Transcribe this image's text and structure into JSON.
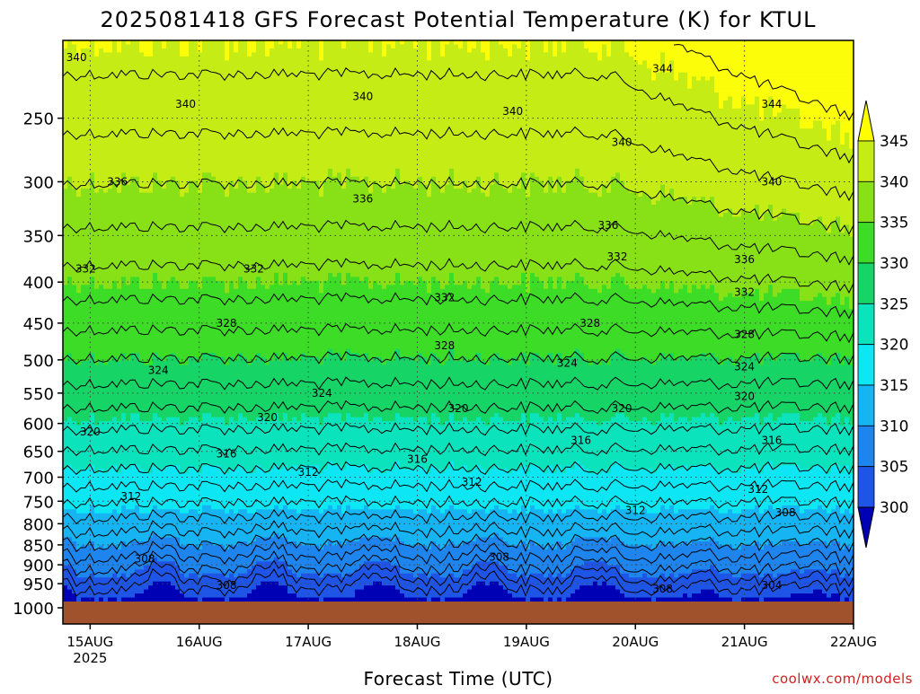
{
  "chart_data": {
    "type": "heatmap",
    "title": "2025081418 GFS Forecast Potential Temperature (K) for KTUL",
    "xlabel": "Forecast Time (UTC)",
    "ylabel": "",
    "watermark": "coolwx.com/models",
    "x_ticks": [
      "15AUG",
      "16AUG",
      "17AUG",
      "18AUG",
      "19AUG",
      "20AUG",
      "21AUG",
      "22AUG"
    ],
    "x_year_label": "2025",
    "x_range": [
      "2025-08-14T18:00",
      "2025-08-22T00:00"
    ],
    "y_ticks": [
      250,
      300,
      350,
      400,
      450,
      500,
      550,
      600,
      650,
      700,
      750,
      800,
      850,
      900,
      950,
      1000
    ],
    "y_range": [
      200,
      1000
    ],
    "y_scale": "log",
    "y_reversed": true,
    "grid": true,
    "colorbar": {
      "levels": [
        300,
        305,
        310,
        315,
        320,
        325,
        330,
        335,
        340,
        345
      ],
      "colors": [
        "#0a0cd6",
        "#1f55e6",
        "#1e84ee",
        "#16b4f2",
        "#0de7f4",
        "#0be3bc",
        "#17d467",
        "#3ddc27",
        "#88e016",
        "#c6ec16",
        "#fbfd09"
      ],
      "below_color": "#0000b4",
      "above_color": "#ffff00",
      "placement": "right"
    },
    "ground_color": "#a0522d",
    "contour_labels": [
      {
        "text": "340",
        "time": "2025-08-14T21:00",
        "p": 210
      },
      {
        "text": "340",
        "time": "2025-08-15T21:00",
        "p": 240
      },
      {
        "text": "340",
        "time": "2025-08-17T12:00",
        "p": 235
      },
      {
        "text": "340",
        "time": "2025-08-18T21:00",
        "p": 245
      },
      {
        "text": "340",
        "time": "2025-08-19T21:00",
        "p": 268
      },
      {
        "text": "340",
        "time": "2025-08-21T06:00",
        "p": 300
      },
      {
        "text": "344",
        "time": "2025-08-20T06:00",
        "p": 217
      },
      {
        "text": "344",
        "time": "2025-08-21T06:00",
        "p": 240
      },
      {
        "text": "336",
        "time": "2025-08-15T06:00",
        "p": 300
      },
      {
        "text": "336",
        "time": "2025-08-17T12:00",
        "p": 315
      },
      {
        "text": "336",
        "time": "2025-08-19T18:00",
        "p": 340
      },
      {
        "text": "336",
        "time": "2025-08-21T00:00",
        "p": 375
      },
      {
        "text": "332",
        "time": "2025-08-14T23:00",
        "p": 385
      },
      {
        "text": "332",
        "time": "2025-08-16T12:00",
        "p": 385
      },
      {
        "text": "332",
        "time": "2025-08-18T06:00",
        "p": 418
      },
      {
        "text": "332",
        "time": "2025-08-19T20:00",
        "p": 372
      },
      {
        "text": "332",
        "time": "2025-08-21T00:00",
        "p": 412
      },
      {
        "text": "328",
        "time": "2025-08-16T06:00",
        "p": 450
      },
      {
        "text": "328",
        "time": "2025-08-18T06:00",
        "p": 480
      },
      {
        "text": "328",
        "time": "2025-08-19T14:00",
        "p": 450
      },
      {
        "text": "328",
        "time": "2025-08-21T00:00",
        "p": 465
      },
      {
        "text": "324",
        "time": "2025-08-15T15:00",
        "p": 515
      },
      {
        "text": "324",
        "time": "2025-08-17T03:00",
        "p": 550
      },
      {
        "text": "324",
        "time": "2025-08-19T09:00",
        "p": 505
      },
      {
        "text": "324",
        "time": "2025-08-21T00:00",
        "p": 510
      },
      {
        "text": "320",
        "time": "2025-08-15T00:00",
        "p": 615
      },
      {
        "text": "320",
        "time": "2025-08-16T15:00",
        "p": 590
      },
      {
        "text": "320",
        "time": "2025-08-18T09:00",
        "p": 575
      },
      {
        "text": "320",
        "time": "2025-08-19T21:00",
        "p": 575
      },
      {
        "text": "320",
        "time": "2025-08-21T00:00",
        "p": 555
      },
      {
        "text": "316",
        "time": "2025-08-16T06:00",
        "p": 655
      },
      {
        "text": "316",
        "time": "2025-08-18T00:00",
        "p": 665
      },
      {
        "text": "316",
        "time": "2025-08-19T12:00",
        "p": 630
      },
      {
        "text": "316",
        "time": "2025-08-21T06:00",
        "p": 630
      },
      {
        "text": "312",
        "time": "2025-08-15T09:00",
        "p": 740
      },
      {
        "text": "312",
        "time": "2025-08-17T00:00",
        "p": 690
      },
      {
        "text": "312",
        "time": "2025-08-18T12:00",
        "p": 710
      },
      {
        "text": "312",
        "time": "2025-08-20T00:00",
        "p": 770
      },
      {
        "text": "312",
        "time": "2025-08-21T03:00",
        "p": 725
      },
      {
        "text": "308",
        "time": "2025-08-15T12:00",
        "p": 885
      },
      {
        "text": "308",
        "time": "2025-08-16T06:00",
        "p": 955
      },
      {
        "text": "308",
        "time": "2025-08-18T18:00",
        "p": 880
      },
      {
        "text": "308",
        "time": "2025-08-20T06:00",
        "p": 965
      },
      {
        "text": "308",
        "time": "2025-08-21T09:00",
        "p": 775
      },
      {
        "text": "304",
        "time": "2025-08-21T06:00",
        "p": 955
      }
    ]
  }
}
